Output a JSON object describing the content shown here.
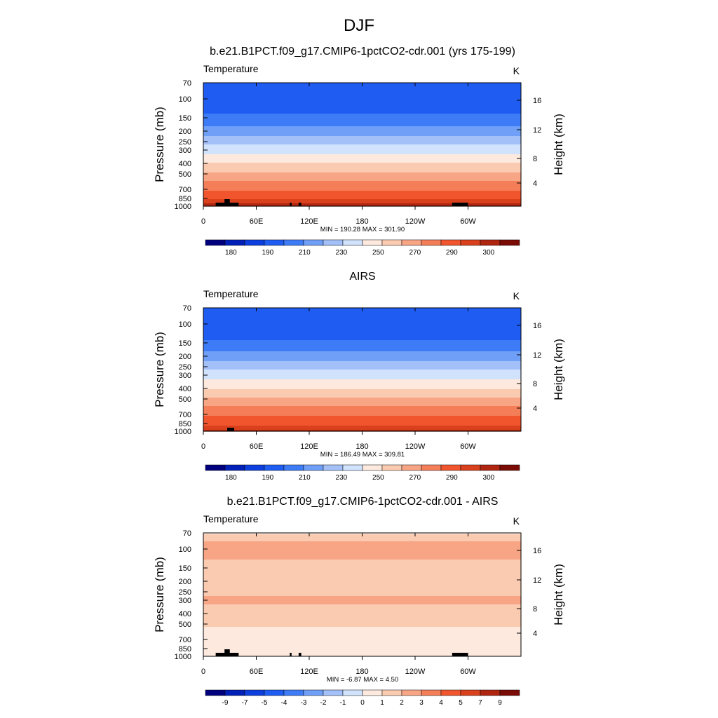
{
  "figure": {
    "title": "DJF"
  },
  "chart_data": [
    {
      "type": "heatmap",
      "plot": "filled-contour",
      "title": "b.e21.B1PCT.f09_g17.CMIP6-1pctCO2-cdr.001 (yrs 175-199)",
      "variable": "Temperature",
      "units": "K",
      "ylabel": "Pressure (mb)",
      "ylabel_right": "Height (km)",
      "x_ticks": [
        "0",
        "60E",
        "120E",
        "180",
        "120W",
        "60W"
      ],
      "y_ticks": [
        "70",
        "100",
        "150",
        "200",
        "250",
        "300",
        "400",
        "500",
        "700",
        "850",
        "1000"
      ],
      "height_ticks": [
        "16",
        "12",
        "8",
        "4"
      ],
      "stats": "MIN = 190.28  MAX = 301.90",
      "colorbar_labels": [
        "180",
        "190",
        "210",
        "230",
        "250",
        "270",
        "290",
        "300"
      ],
      "levels": [
        175,
        180,
        185,
        190,
        200,
        210,
        220,
        230,
        240,
        250,
        260,
        270,
        280,
        290,
        295,
        300
      ],
      "profile": [
        {
          "p": 70,
          "t": 192
        },
        {
          "p": 100,
          "t": 193
        },
        {
          "p": 120,
          "t": 196
        },
        {
          "p": 150,
          "t": 203
        },
        {
          "p": 200,
          "t": 215
        },
        {
          "p": 250,
          "t": 226
        },
        {
          "p": 300,
          "t": 236
        },
        {
          "p": 400,
          "t": 250
        },
        {
          "p": 500,
          "t": 262
        },
        {
          "p": 700,
          "t": 279
        },
        {
          "p": 850,
          "t": 289
        },
        {
          "p": 1000,
          "t": 298
        }
      ]
    },
    {
      "type": "heatmap",
      "plot": "filled-contour",
      "title": "AIRS",
      "variable": "Temperature",
      "units": "K",
      "ylabel": "Pressure (mb)",
      "ylabel_right": "Height (km)",
      "x_ticks": [
        "0",
        "60E",
        "120E",
        "180",
        "120W",
        "60W"
      ],
      "y_ticks": [
        "70",
        "100",
        "150",
        "200",
        "250",
        "300",
        "400",
        "500",
        "700",
        "850",
        "1000"
      ],
      "height_ticks": [
        "16",
        "12",
        "8",
        "4"
      ],
      "stats": "MIN = 186.49  MAX = 309.81",
      "colorbar_labels": [
        "180",
        "190",
        "210",
        "230",
        "250",
        "270",
        "290",
        "300"
      ],
      "levels": [
        175,
        180,
        185,
        190,
        200,
        210,
        220,
        230,
        240,
        250,
        260,
        270,
        280,
        290,
        295,
        300
      ],
      "profile": [
        {
          "p": 70,
          "t": 193
        },
        {
          "p": 100,
          "t": 191
        },
        {
          "p": 120,
          "t": 194
        },
        {
          "p": 150,
          "t": 202
        },
        {
          "p": 200,
          "t": 214
        },
        {
          "p": 250,
          "t": 226
        },
        {
          "p": 300,
          "t": 236
        },
        {
          "p": 400,
          "t": 249
        },
        {
          "p": 500,
          "t": 261
        },
        {
          "p": 700,
          "t": 279
        },
        {
          "p": 850,
          "t": 288
        },
        {
          "p": 1000,
          "t": 297
        }
      ]
    },
    {
      "type": "heatmap",
      "plot": "filled-contour",
      "title": "b.e21.B1PCT.f09_g17.CMIP6-1pctCO2-cdr.001 - AIRS",
      "variable": "Temperature",
      "units": "K",
      "ylabel": "Pressure (mb)",
      "ylabel_right": "Height (km)",
      "x_ticks": [
        "0",
        "60E",
        "120E",
        "180",
        "120W",
        "60W"
      ],
      "y_ticks": [
        "70",
        "100",
        "150",
        "200",
        "250",
        "300",
        "400",
        "500",
        "700",
        "850",
        "1000"
      ],
      "height_ticks": [
        "16",
        "12",
        "8",
        "4"
      ],
      "stats": "MIN =  -6.87  MAX =   4.50",
      "colorbar_labels": [
        "-9",
        "-7",
        "-5",
        "-4",
        "-3",
        "-2",
        "-1",
        "0",
        "1",
        "2",
        "3",
        "4",
        "5",
        "7",
        "9"
      ],
      "levels": [
        -11,
        -9,
        -7,
        -5,
        -4,
        -3,
        -2,
        -1,
        0,
        1,
        2,
        3,
        4,
        5,
        7,
        9
      ],
      "profile": [
        {
          "p": 70,
          "t": 0.8
        },
        {
          "p": 90,
          "t": 2.3
        },
        {
          "p": 110,
          "t": 2.6
        },
        {
          "p": 150,
          "t": 1.2
        },
        {
          "p": 200,
          "t": 1.3
        },
        {
          "p": 300,
          "t": 2.2
        },
        {
          "p": 400,
          "t": 1.6
        },
        {
          "p": 500,
          "t": 1.1
        },
        {
          "p": 700,
          "t": 0.6
        },
        {
          "p": 1000,
          "t": 0.4
        }
      ]
    }
  ],
  "colors": {
    "temperature_colormap": [
      "#00007f",
      "#0020b8",
      "#0c3fde",
      "#1e5cf2",
      "#3d7cf6",
      "#6f9ff7",
      "#a3c0f9",
      "#d0e2fc",
      "#fde9de",
      "#fbcbb1",
      "#f8a585",
      "#f47e58",
      "#f0552d",
      "#d9411d",
      "#b0250f",
      "#7a0b05"
    ],
    "difference_colormap": [
      "#00007f",
      "#0020b8",
      "#0c3fde",
      "#1e5cf2",
      "#3d7cf6",
      "#6f9ff7",
      "#a3c0f9",
      "#d0e2fc",
      "#fde9de",
      "#fbcbb1",
      "#f8a585",
      "#f47e58",
      "#f0552d",
      "#d9411d",
      "#b0250f",
      "#7a0b05"
    ],
    "topography": "#000000"
  }
}
